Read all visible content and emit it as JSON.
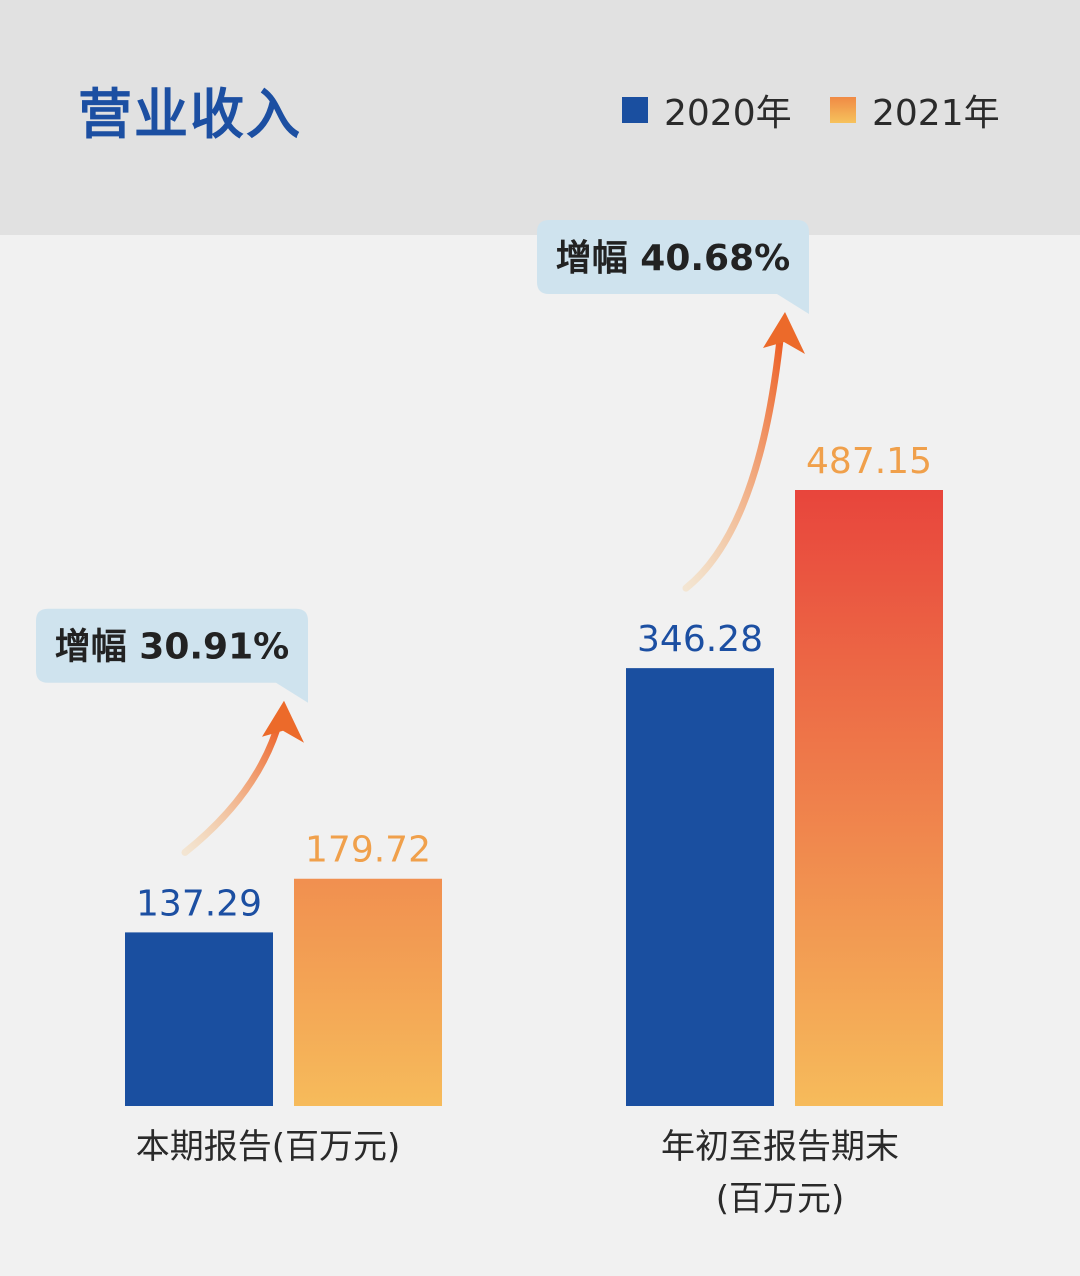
{
  "chart_data": {
    "type": "bar",
    "title": "营业收入",
    "categories": [
      {
        "lines": [
          "本期报告(百万元)"
        ]
      },
      {
        "lines": [
          "年初至报告期末",
          "(百万元)"
        ]
      }
    ],
    "series": [
      {
        "name": "2020年",
        "values": [
          137.29,
          346.28
        ],
        "labels": [
          "137.29",
          "346.28"
        ],
        "color": "#1a4fa0"
      },
      {
        "name": "2021年",
        "values": [
          179.72,
          487.15
        ],
        "labels": [
          "179.72",
          "487.15"
        ],
        "color_top": "#e8453c",
        "color_bottom": "#f6bb5b"
      }
    ],
    "annotations": [
      "增幅 30.91%",
      "增幅 40.68%"
    ],
    "value_label_colors": {
      "2020": "#1c4fa2",
      "2021": "#f0a04b"
    },
    "bubble_color": "#cfe3ee",
    "arrow_color": "#ec6a2a",
    "ylim": [
      0,
      500
    ],
    "grid": false,
    "legend": "top-right"
  }
}
